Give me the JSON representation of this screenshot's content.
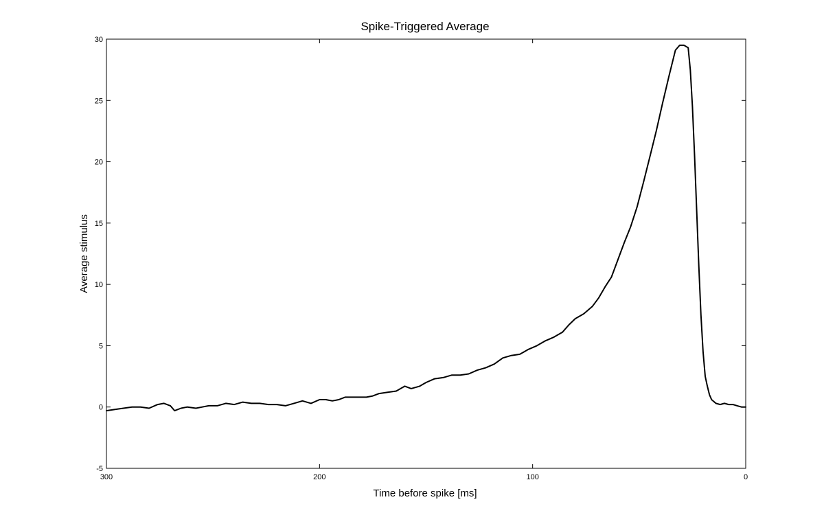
{
  "chart_data": {
    "type": "line",
    "title": "Spike-Triggered Average",
    "xlabel": "Time before spike [ms]",
    "ylabel": "Average stimulus",
    "xlim": [
      300,
      0
    ],
    "ylim": [
      -5,
      30
    ],
    "x_reversed": true,
    "xticks": [
      300,
      200,
      100,
      0
    ],
    "yticks": [
      -5,
      0,
      5,
      10,
      15,
      20,
      25,
      30
    ],
    "grid": false,
    "line_color": "#000000",
    "series": [
      {
        "x": [
          300,
          296,
          292,
          288,
          284,
          280,
          276,
          273,
          270,
          268,
          265,
          262,
          258,
          255,
          252,
          248,
          244,
          240,
          236,
          232,
          228,
          224,
          220,
          216,
          212,
          208,
          204,
          200,
          197,
          194,
          191,
          188,
          185,
          182,
          178,
          175,
          172,
          168,
          164,
          160,
          157,
          153,
          150,
          146,
          142,
          138,
          134,
          130,
          126,
          122,
          118,
          114,
          110,
          106,
          102,
          98,
          94,
          90,
          86,
          83,
          80,
          76,
          72,
          69,
          66,
          63,
          60,
          57,
          54,
          51,
          48,
          45,
          42,
          39,
          36,
          33,
          31,
          29,
          27,
          26,
          25,
          24,
          23,
          22,
          21,
          20,
          19,
          18,
          17,
          16,
          14,
          12,
          10,
          8,
          6,
          4,
          2,
          0
        ],
        "y": [
          -0.3,
          -0.2,
          -0.1,
          0.0,
          0.0,
          -0.1,
          0.2,
          0.3,
          0.1,
          -0.3,
          -0.1,
          0.0,
          -0.1,
          0.0,
          0.1,
          0.1,
          0.3,
          0.2,
          0.4,
          0.3,
          0.3,
          0.2,
          0.2,
          0.1,
          0.3,
          0.5,
          0.3,
          0.6,
          0.6,
          0.5,
          0.6,
          0.8,
          0.8,
          0.8,
          0.8,
          0.9,
          1.1,
          1.2,
          1.3,
          1.7,
          1.5,
          1.7,
          2.0,
          2.3,
          2.4,
          2.6,
          2.6,
          2.7,
          3.0,
          3.2,
          3.5,
          4.0,
          4.2,
          4.3,
          4.7,
          5.0,
          5.4,
          5.7,
          6.1,
          6.7,
          7.2,
          7.6,
          8.2,
          8.9,
          9.8,
          10.6,
          12.0,
          13.4,
          14.7,
          16.3,
          18.3,
          20.4,
          22.5,
          24.8,
          27.0,
          29.1,
          29.5,
          29.5,
          29.3,
          27.5,
          24.5,
          20.5,
          16.0,
          11.5,
          7.5,
          4.5,
          2.5,
          1.7,
          1.0,
          0.6,
          0.3,
          0.2,
          0.3,
          0.2,
          0.2,
          0.1,
          0.0,
          0.0
        ]
      }
    ]
  }
}
